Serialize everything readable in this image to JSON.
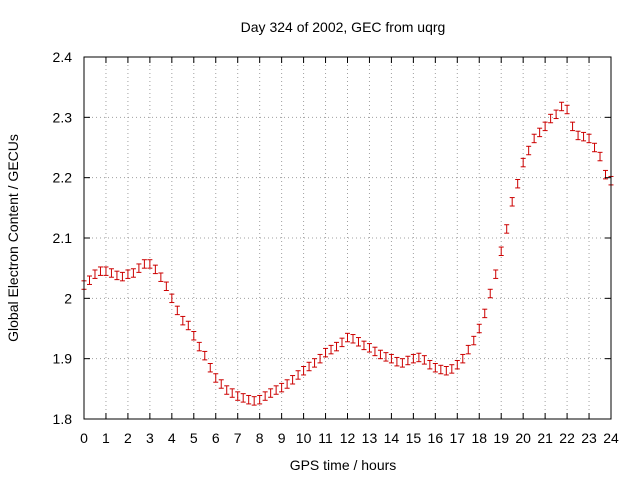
{
  "chart_data": {
    "type": "scatter",
    "title": "Day 324 of 2002, GEC from uqrg",
    "xlabel": "GPS time / hours",
    "ylabel": "Global Electron Content / GECUs",
    "xlim": [
      0,
      24
    ],
    "ylim": [
      1.8,
      2.4
    ],
    "grid": true,
    "error_bars": true,
    "marker_color": "#cc0000",
    "x_ticks": [
      0,
      1,
      2,
      3,
      4,
      5,
      6,
      7,
      8,
      9,
      10,
      11,
      12,
      13,
      14,
      15,
      16,
      17,
      18,
      19,
      20,
      21,
      22,
      23,
      24
    ],
    "y_ticks": [
      1.8,
      1.9,
      2,
      2.1,
      2.2,
      2.3,
      2.4
    ],
    "y_tick_labels": [
      "1.8",
      "1.9",
      "2",
      "2.1",
      "2.2",
      "2.3",
      "2.4"
    ],
    "error_half_width": 0.007,
    "x": [
      0,
      0.25,
      0.5,
      0.75,
      1,
      1.25,
      1.5,
      1.75,
      2,
      2.25,
      2.5,
      2.75,
      3,
      3.25,
      3.5,
      3.75,
      4,
      4.25,
      4.5,
      4.75,
      5,
      5.25,
      5.5,
      5.75,
      6,
      6.25,
      6.5,
      6.75,
      7,
      7.25,
      7.5,
      7.75,
      8,
      8.25,
      8.5,
      8.75,
      9,
      9.25,
      9.5,
      9.75,
      10,
      10.25,
      10.5,
      10.75,
      11,
      11.25,
      11.5,
      11.75,
      12,
      12.25,
      12.5,
      12.75,
      13,
      13.25,
      13.5,
      13.75,
      14,
      14.25,
      14.5,
      14.75,
      15,
      15.25,
      15.5,
      15.75,
      16,
      16.25,
      16.5,
      16.75,
      17,
      17.25,
      17.5,
      17.75,
      18,
      18.25,
      18.5,
      18.75,
      19,
      19.25,
      19.5,
      19.75,
      20,
      20.25,
      20.5,
      20.75,
      21,
      21.25,
      21.5,
      21.75,
      22,
      22.25,
      22.5,
      22.75,
      23,
      23.25,
      23.5,
      23.75,
      24
    ],
    "y": [
      2.022,
      2.03,
      2.04,
      2.045,
      2.045,
      2.042,
      2.038,
      2.036,
      2.04,
      2.042,
      2.05,
      2.057,
      2.057,
      2.048,
      2.035,
      2.02,
      2.0,
      1.98,
      1.963,
      1.955,
      1.938,
      1.92,
      1.905,
      1.885,
      1.868,
      1.858,
      1.848,
      1.843,
      1.838,
      1.835,
      1.832,
      1.83,
      1.832,
      1.838,
      1.843,
      1.848,
      1.852,
      1.858,
      1.865,
      1.873,
      1.88,
      1.887,
      1.893,
      1.9,
      1.91,
      1.915,
      1.92,
      1.927,
      1.935,
      1.933,
      1.928,
      1.922,
      1.918,
      1.912,
      1.907,
      1.903,
      1.9,
      1.895,
      1.893,
      1.897,
      1.9,
      1.902,
      1.898,
      1.89,
      1.885,
      1.882,
      1.88,
      1.883,
      1.89,
      1.9,
      1.915,
      1.93,
      1.95,
      1.975,
      2.008,
      2.04,
      2.078,
      2.115,
      2.16,
      2.19,
      2.225,
      2.245,
      2.265,
      2.275,
      2.285,
      2.298,
      2.305,
      2.318,
      2.313,
      2.285,
      2.27,
      2.268,
      2.265,
      2.25,
      2.235,
      2.205,
      2.195
    ]
  }
}
